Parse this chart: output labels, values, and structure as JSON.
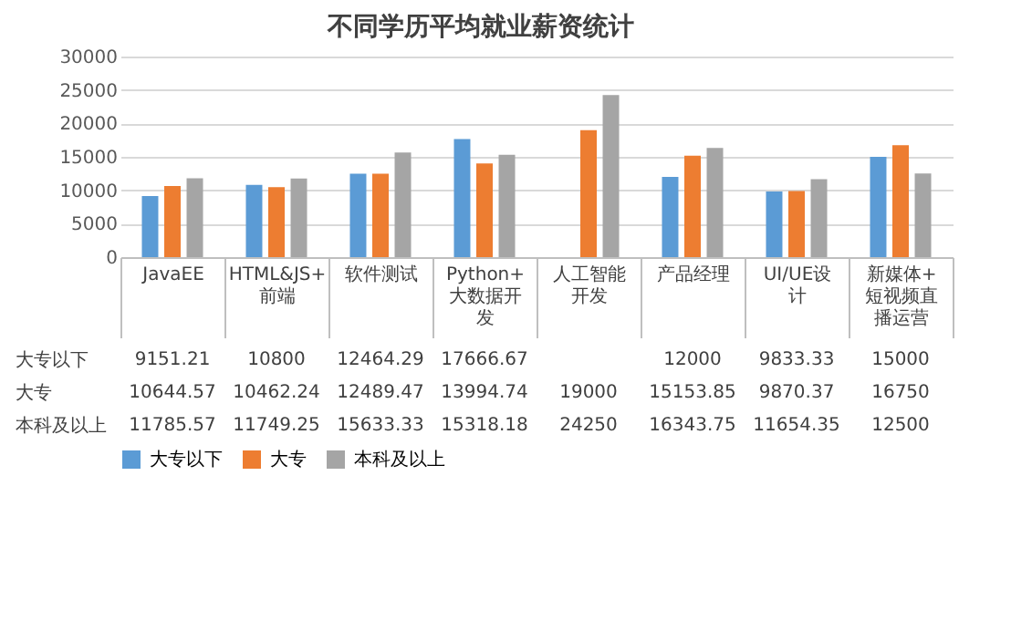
{
  "chart_data": {
    "type": "bar",
    "title": "不同学历平均就业薪资统计",
    "categories": [
      "JavaEE",
      "HTML&JS+前端",
      "软件测试",
      "Python+大数据开发",
      "人工智能开发",
      "产品经理",
      "UI/UE设计",
      "新媒体+短视频直播运营"
    ],
    "series": [
      {
        "name": "大专以下",
        "color": "#5b9bd5",
        "values": [
          9151.21,
          10800,
          12464.29,
          17666.67,
          null,
          12000,
          9833.33,
          15000
        ]
      },
      {
        "name": "大专",
        "color": "#ed7d31",
        "values": [
          10644.57,
          10462.24,
          12489.47,
          13994.74,
          19000,
          15153.85,
          9870.37,
          16750
        ]
      },
      {
        "name": "本科及以上",
        "color": "#a5a5a5",
        "values": [
          11785.57,
          11749.25,
          15633.33,
          15318.18,
          24250,
          16343.75,
          11654.35,
          12500
        ]
      }
    ],
    "ylim": [
      0,
      30000
    ],
    "yticks": [
      0,
      5000,
      10000,
      15000,
      20000,
      25000,
      30000
    ],
    "grid": "y",
    "legend": "bottom",
    "data_labels": true
  }
}
